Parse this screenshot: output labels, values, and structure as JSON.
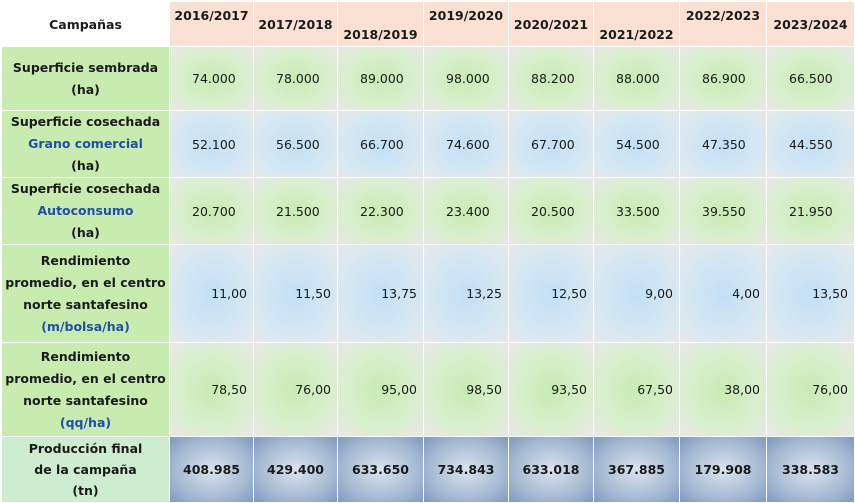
{
  "header": {
    "corner": "Campañas",
    "years": [
      "2016/2017",
      "2017/2018",
      "2018/2019",
      "2019/2020",
      "2020/2021",
      "2021/2022",
      "2022/2023",
      "2023/2024"
    ]
  },
  "rows": [
    {
      "label_lines": [
        "Superficie sembrada",
        "(ha)"
      ],
      "values": [
        "74.000",
        "78.000",
        "89.000",
        "98.000",
        "88.200",
        "88.000",
        "86.900",
        "66.500"
      ]
    },
    {
      "label_lines": [
        "Superficie cosechada",
        "Grano comercial",
        "(ha)"
      ],
      "values": [
        "52.100",
        "56.500",
        "66.700",
        "74.600",
        "67.700",
        "54.500",
        "47.350",
        "44.550"
      ]
    },
    {
      "label_lines": [
        "Superficie cosechada",
        "Autoconsumo",
        "(ha)"
      ],
      "values": [
        "20.700",
        "21.500",
        "22.300",
        "23.400",
        "20.500",
        "33.500",
        "39.550",
        "21.950"
      ]
    },
    {
      "label_lines": [
        "Rendimiento",
        "promedio, en el centro",
        "norte santafesino",
        "(m/bolsa/ha)"
      ],
      "values": [
        "11,00",
        "11,50",
        "13,75",
        "13,25",
        "12,50",
        "9,00",
        "4,00",
        "13,50"
      ]
    },
    {
      "label_lines": [
        "Rendimiento",
        "promedio, en el centro",
        "norte santafesino",
        "(qq/ha)"
      ],
      "values": [
        "78,50",
        "76,00",
        "95,00",
        "98,50",
        "93,50",
        "67,50",
        "38,00",
        "76,00"
      ]
    },
    {
      "label_lines": [
        "Producción final",
        "de la campaña",
        "(tn)"
      ],
      "values": [
        "408.985",
        "429.400",
        "633.650",
        "734.843",
        "633.018",
        "367.885",
        "179.908",
        "338.583"
      ]
    }
  ],
  "colors": {
    "header_bg": "#fbe1d3",
    "label_bg": "#c8ecb0",
    "cell_green": "#c8ebb4",
    "cell_blue": "#c3e0f6",
    "production_bg": "#8ea6c8",
    "subtitle_blue": "#1f4fa8"
  }
}
